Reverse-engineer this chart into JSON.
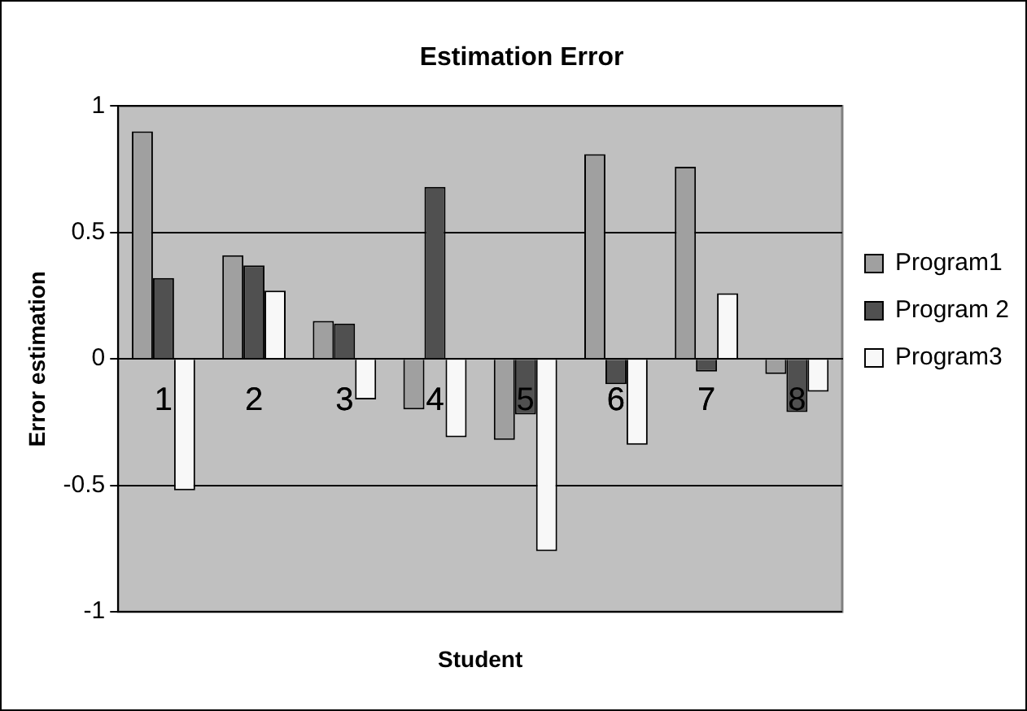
{
  "chart_data": {
    "type": "bar",
    "title": "Estimation Error",
    "xlabel": "Student",
    "ylabel": "Error estimation",
    "categories": [
      "1",
      "2",
      "3",
      "4",
      "5",
      "6",
      "7",
      "8"
    ],
    "series": [
      {
        "name": "Program1",
        "color": "#a0a0a0",
        "values": [
          0.9,
          0.41,
          0.15,
          -0.2,
          -0.32,
          0.81,
          0.76,
          -0.06
        ]
      },
      {
        "name": "Program 2",
        "color": "#505050",
        "values": [
          0.32,
          0.37,
          0.14,
          0.68,
          -0.22,
          -0.1,
          -0.05,
          -0.21
        ]
      },
      {
        "name": "Program3",
        "color": "#f8f8f8",
        "values": [
          -0.52,
          0.27,
          -0.16,
          -0.31,
          -0.76,
          -0.34,
          0.26,
          -0.13
        ]
      }
    ],
    "ylim": [
      -1,
      1
    ],
    "yticks": [
      -1,
      -0.5,
      0,
      0.5,
      1
    ],
    "grid": "y",
    "legend": "right"
  }
}
